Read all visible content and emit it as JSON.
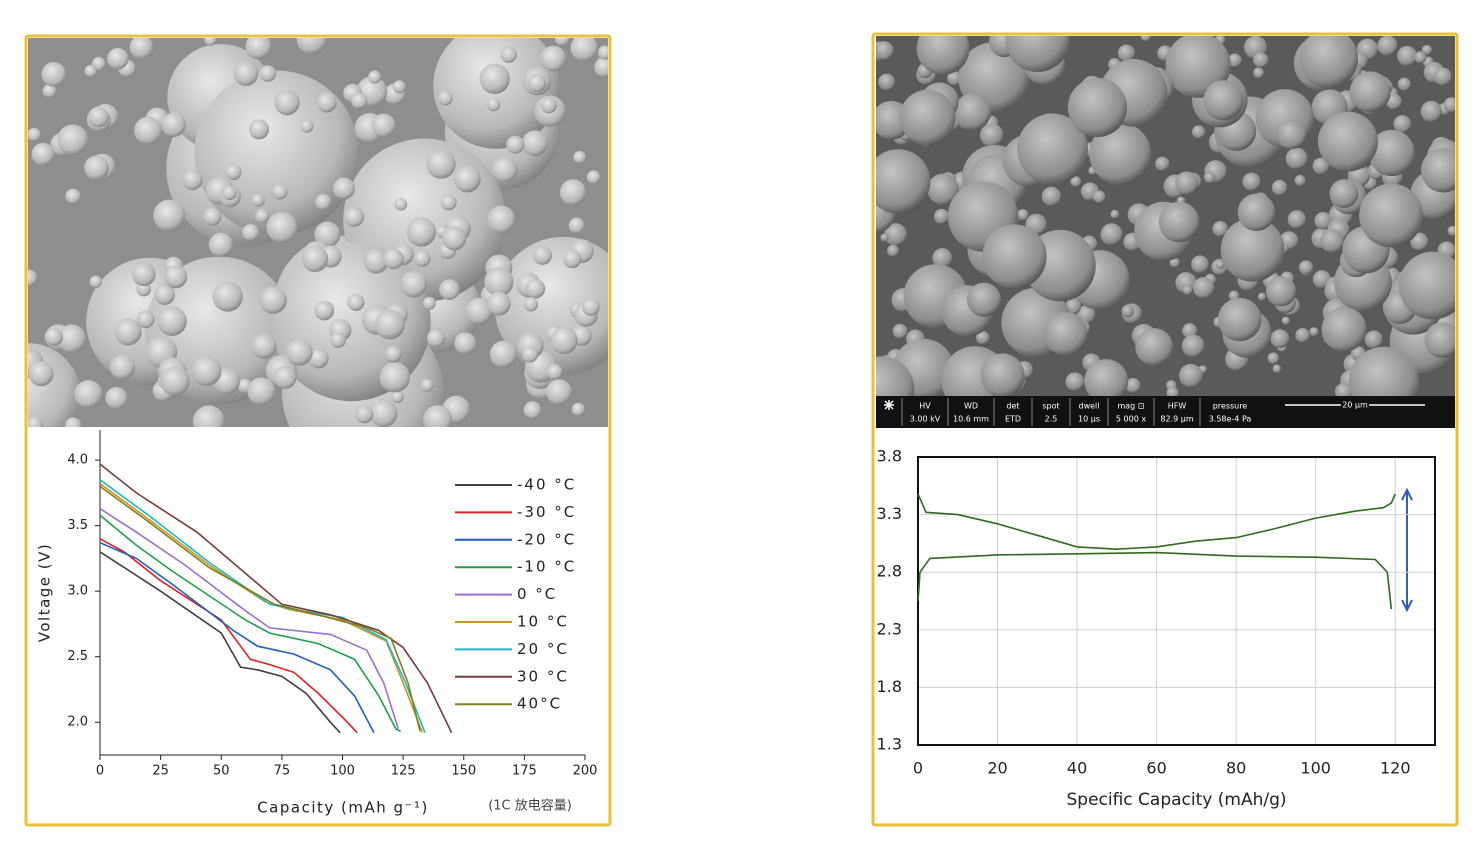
{
  "chart_data": [
    {
      "type": "line",
      "x_label": "Capacity (mAh g⁻¹)",
      "y_label": "Voltage (V)",
      "annotation": "(1C 放电容量)",
      "xlim": [
        0,
        200
      ],
      "xticks": [
        0,
        25,
        50,
        75,
        100,
        125,
        150,
        175,
        200
      ],
      "ylim": [
        1.75,
        4.23
      ],
      "yticks": [
        {
          "value": 2,
          "label": "2.0"
        },
        {
          "value": 2.5,
          "label": "2.5"
        },
        {
          "value": 3,
          "label": "3.0"
        },
        {
          "value": 3.5,
          "label": "3.5"
        },
        {
          "value": 4,
          "label": "4.0"
        }
      ],
      "grid": false,
      "legend": "right",
      "series": [
        {
          "name": "-40 °C",
          "color": "#404040",
          "x": [
            0,
            10,
            25,
            50,
            58,
            65,
            75,
            85,
            95,
            99
          ],
          "values": [
            3.3,
            3.18,
            3.0,
            2.68,
            2.42,
            2.4,
            2.35,
            2.22,
            2.0,
            1.92
          ]
        },
        {
          "name": "-30 °C",
          "color": "#e02020",
          "x": [
            0,
            10,
            25,
            50,
            62,
            70,
            80,
            90,
            102,
            106
          ],
          "values": [
            3.4,
            3.3,
            3.08,
            2.78,
            2.48,
            2.44,
            2.38,
            2.22,
            2.0,
            1.92
          ]
        },
        {
          "name": "-20 °C",
          "color": "#1f5fbf",
          "x": [
            0,
            15,
            30,
            55,
            65,
            80,
            95,
            105,
            113
          ],
          "values": [
            3.37,
            3.25,
            3.05,
            2.7,
            2.58,
            2.52,
            2.4,
            2.2,
            1.92
          ]
        },
        {
          "name": "-10 °C",
          "color": "#1f9e4a",
          "x": [
            0,
            15,
            30,
            60,
            70,
            90,
            105,
            115,
            122,
            124
          ],
          "values": [
            3.58,
            3.35,
            3.15,
            2.78,
            2.68,
            2.6,
            2.48,
            2.2,
            1.95,
            1.93
          ]
        },
        {
          "name": "0 °C",
          "color": "#9b6fd0",
          "x": [
            0,
            15,
            35,
            60,
            70,
            95,
            110,
            117,
            123
          ],
          "values": [
            3.63,
            3.45,
            3.2,
            2.85,
            2.72,
            2.67,
            2.55,
            2.3,
            1.95
          ]
        },
        {
          "name": "10 °C",
          "color": "#c8961e",
          "x": [
            0,
            20,
            45,
            68,
            78,
            100,
            118,
            125,
            133
          ],
          "values": [
            3.82,
            3.55,
            3.2,
            2.92,
            2.86,
            2.78,
            2.62,
            2.3,
            1.92
          ]
        },
        {
          "name": "20 °C",
          "color": "#20b8c8",
          "x": [
            0,
            20,
            45,
            70,
            80,
            100,
            118,
            126,
            134
          ],
          "values": [
            3.85,
            3.58,
            3.22,
            2.9,
            2.86,
            2.8,
            2.63,
            2.3,
            1.92
          ]
        },
        {
          "name": "30 °C",
          "color": "#7b3a3a",
          "x": [
            0,
            15,
            40,
            75,
            95,
            115,
            125,
            135,
            145
          ],
          "values": [
            3.97,
            3.75,
            3.45,
            2.9,
            2.82,
            2.7,
            2.57,
            2.3,
            1.92
          ]
        },
        {
          "name": "40°C",
          "color": "#808020",
          "x": [
            0,
            20,
            45,
            72,
            90,
            110,
            120,
            127,
            132
          ],
          "values": [
            3.8,
            3.53,
            3.18,
            2.9,
            2.82,
            2.72,
            2.64,
            2.3,
            1.93
          ]
        }
      ]
    },
    {
      "type": "line",
      "x_label": "Specific Capacity (mAh/g)",
      "xlim": [
        0,
        130
      ],
      "xticks": [
        0,
        20,
        40,
        60,
        80,
        100,
        120
      ],
      "ylim": [
        1.3,
        3.8
      ],
      "yticks": [
        1.3,
        1.8,
        2.3,
        2.8,
        3.3,
        3.8
      ],
      "grid": true,
      "series": [
        {
          "color": "#2e6b1f",
          "x": [
            0,
            2,
            10,
            20,
            30,
            40,
            50,
            60,
            70,
            80,
            90,
            100,
            110,
            117,
            119,
            120
          ],
          "values": [
            3.48,
            3.32,
            3.3,
            3.22,
            3.12,
            3.02,
            3.0,
            3.02,
            3.07,
            3.1,
            3.18,
            3.27,
            3.33,
            3.36,
            3.4,
            3.48
          ]
        },
        {
          "color": "#2e6b1f",
          "x": [
            0,
            0.5,
            3,
            20,
            40,
            60,
            80,
            100,
            115,
            118,
            119
          ],
          "values": [
            2.55,
            2.8,
            2.92,
            2.95,
            2.96,
            2.97,
            2.94,
            2.93,
            2.91,
            2.8,
            2.48
          ]
        }
      ]
    }
  ],
  "sem_info": {
    "fields": [
      {
        "label": "HV",
        "value": "3.00 kV"
      },
      {
        "label": "WD",
        "value": "10.6 mm"
      },
      {
        "label": "det",
        "value": "ETD"
      },
      {
        "label": "spot",
        "value": "2.5"
      },
      {
        "label": "dwell",
        "value": "10 μs"
      },
      {
        "label": "mag ⊡",
        "value": "5 000 x"
      },
      {
        "label": "HFW",
        "value": "82.9 μm"
      },
      {
        "label": "pressure",
        "value": "3.58e-4 Pa"
      }
    ],
    "scale_bar": "20 μm"
  }
}
